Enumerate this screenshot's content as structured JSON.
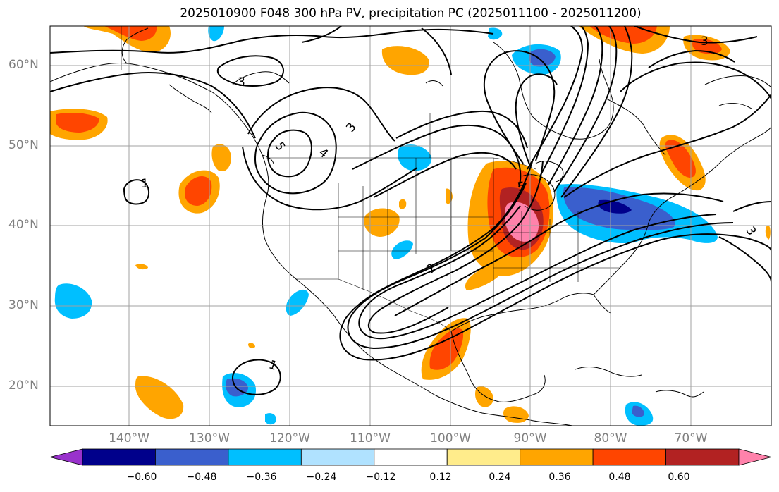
{
  "title": "2025010900 F048 300 hPa PV, precipitation PC (2025011100 - 2025011200)",
  "lat_labels": [
    "60°N",
    "50°N",
    "40°N",
    "30°N",
    "20°N"
  ],
  "lon_labels": [
    "140°W",
    "130°W",
    "120°W",
    "110°W",
    "100°W",
    "90°W",
    "80°W",
    "70°W"
  ],
  "contour_labels": [
    "3",
    "3",
    "5",
    "4",
    "2",
    "1",
    "5",
    "3",
    "1",
    "3"
  ],
  "colorbar": {
    "colors": [
      "#9932cc",
      "#00008b",
      "#3a5fcd",
      "#00bfff",
      "#b0e2ff",
      "#ffffff",
      "#ffec8b",
      "#ffa500",
      "#ff4500",
      "#b22222",
      "#ff82ab"
    ],
    "tick_labels": [
      "−0.60",
      "−0.48",
      "−0.36",
      "−0.24",
      "−0.12",
      "0.12",
      "0.24",
      "0.36",
      "0.48",
      "0.60"
    ]
  },
  "colors": {
    "gridline": "#a0a0a0",
    "axis_text": "#808080",
    "coast": "#000000",
    "contour": "#000000"
  }
}
